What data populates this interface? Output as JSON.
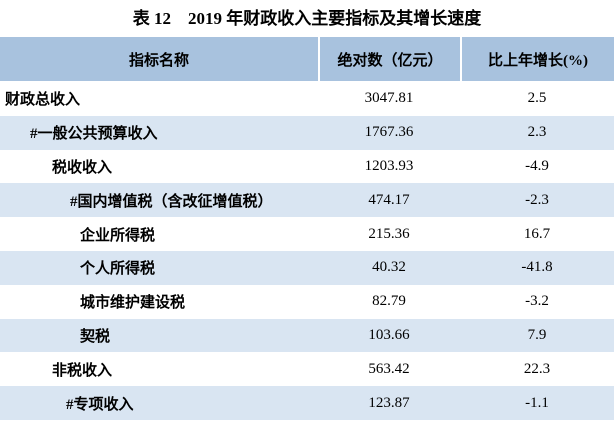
{
  "header": {
    "title": "表 12　2019 年财政收入主要指标及其增长速度"
  },
  "table": {
    "columns": [
      "指标名称",
      "绝对数（亿元）",
      "比上年增长(%)"
    ],
    "rows": [
      [
        "财政总收入",
        "3047.81",
        "2.5"
      ],
      [
        "#一般公共预算收入",
        "1767.36",
        "2.3"
      ],
      [
        "税收收入",
        "1203.93",
        "-4.9"
      ],
      [
        "#国内增值税（含改征增值税）",
        "474.17",
        "-2.3"
      ],
      [
        "企业所得税",
        "215.36",
        "16.7"
      ],
      [
        "个人所得税",
        "40.32",
        "-41.8"
      ],
      [
        "城市维护建设税",
        "82.79",
        "-3.2"
      ],
      [
        "契税",
        "103.66",
        "7.9"
      ],
      [
        "非税收入",
        "563.42",
        "22.3"
      ],
      [
        "#专项收入",
        "123.87",
        "-1.1"
      ]
    ]
  }
}
